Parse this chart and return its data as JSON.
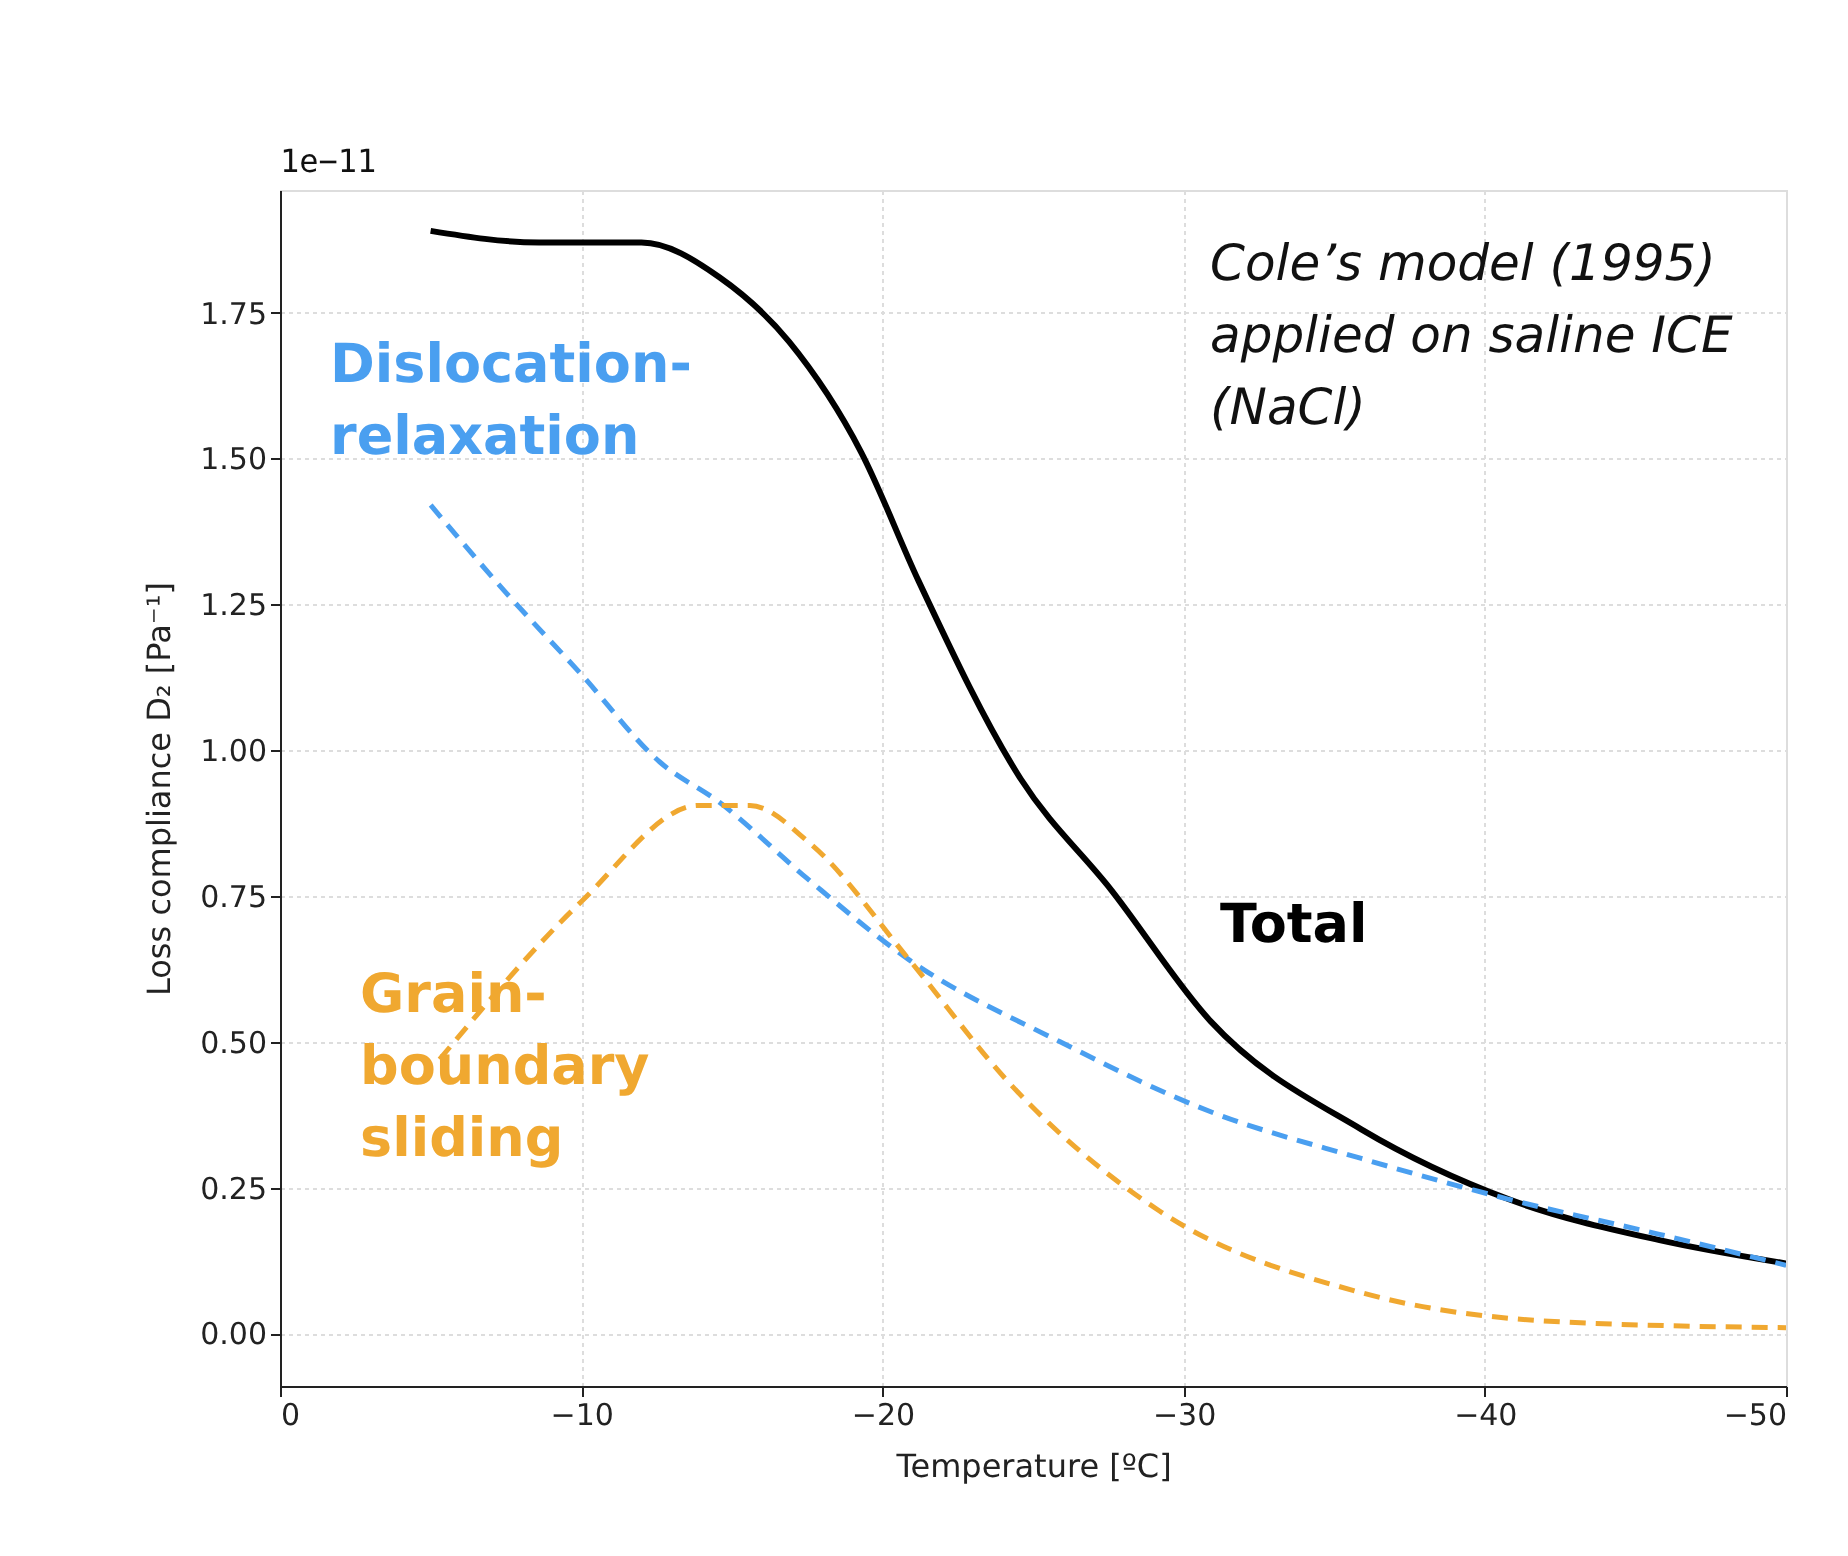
{
  "chart_data": {
    "type": "line",
    "xlabel": "Temperature [ºC]",
    "ylabel": "Loss compliance D₂ [Pa⁻¹]",
    "xlim": [
      0,
      -50
    ],
    "xticks": [
      0,
      {
        "value": -10,
        "label": "−10"
      },
      {
        "value": -20,
        "label": "−20"
      },
      {
        "value": -30,
        "label": "−30"
      },
      {
        "value": -40,
        "label": "−40"
      },
      {
        "value": -50,
        "label": "−50"
      }
    ],
    "ylim": [
      -0.09,
      1.96
    ],
    "yticks": [
      {
        "value": 0,
        "label": "0.00"
      },
      {
        "value": 0.25,
        "label": "0.25"
      },
      {
        "value": 0.5,
        "label": "0.50"
      },
      {
        "value": 0.75,
        "label": "0.75"
      },
      {
        "value": 1.0,
        "label": "1.00"
      },
      {
        "value": 1.25,
        "label": "1.25"
      },
      {
        "value": 1.5,
        "label": "1.50"
      },
      {
        "value": 1.75,
        "label": "1.75"
      }
    ],
    "grid": true,
    "marker": "none",
    "annotations": [
      "1e−11",
      "Cole’s model (1995)\napplied on saline ICE\n(NaCl)"
    ],
    "series": [
      {
        "name": "Total",
        "color": "#000000",
        "line_style": "solid",
        "x": [
          -5,
          -8.6,
          -12,
          -14.6,
          -16.9,
          -19.3,
          -21.2,
          -24.6,
          -27.6,
          -30.9,
          -35.9,
          -40.8,
          -45.8,
          -50
        ],
        "values": [
          1.89,
          1.87,
          1.87,
          1.81,
          1.7,
          1.51,
          1.29,
          0.95,
          0.76,
          0.535,
          0.35,
          0.23,
          0.16,
          0.12
        ]
      },
      {
        "name": "Dislocation-\nrelaxation",
        "color": "#4a9ff0",
        "line_style": "dashed",
        "x": [
          -5,
          -7.5,
          -10,
          -12.6,
          -14.6,
          -17.5,
          -20.9,
          -25.9,
          -30.9,
          -35.9,
          -40.8,
          -45.8,
          -50
        ],
        "values": [
          1.42,
          1.27,
          1.13,
          0.98,
          0.91,
          0.78,
          0.64,
          0.5,
          0.38,
          0.3,
          0.23,
          0.17,
          0.117
        ]
      },
      {
        "name": "Grain-\nboundary\nsliding",
        "color": "#f0a830",
        "line_style": "dashed",
        "x": [
          -5.3,
          -10,
          -13.9,
          -15.6,
          -17.6,
          -20.9,
          -24.2,
          -29.2,
          -35.9,
          -42.5,
          -50
        ],
        "values": [
          0.47,
          0.74,
          0.905,
          0.905,
          0.84,
          0.64,
          0.43,
          0.21,
          0.07,
          0.02,
          0.01
        ]
      }
    ]
  }
}
